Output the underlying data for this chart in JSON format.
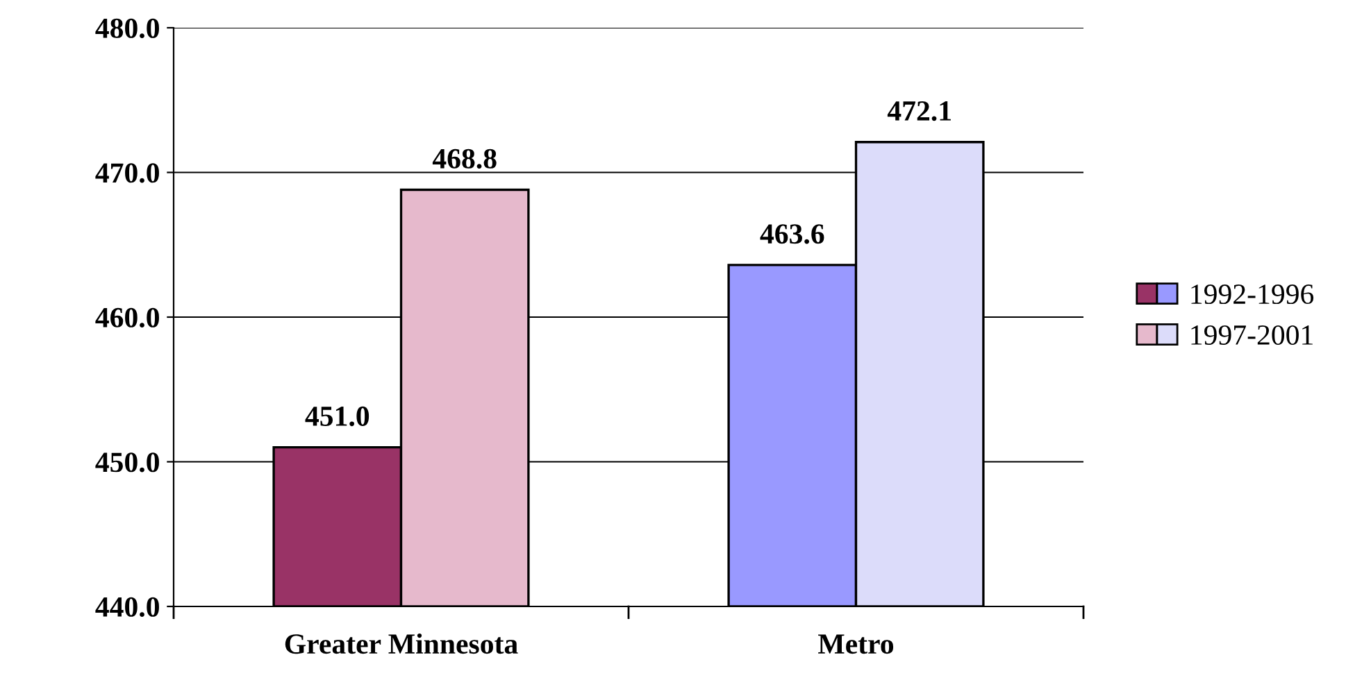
{
  "chart_data": {
    "type": "bar",
    "categories": [
      "Greater Minnesota",
      "Metro"
    ],
    "series": [
      {
        "name": "1992-1996",
        "colors": [
          "#993366",
          "#9999ff"
        ],
        "values": [
          451.0,
          463.6
        ],
        "value_labels": [
          "451.0",
          "463.6"
        ]
      },
      {
        "name": "1997-2001",
        "colors": [
          "#e6b9cc",
          "#dcdcfa"
        ],
        "values": [
          468.8,
          472.1
        ],
        "value_labels": [
          "468.8",
          "472.1"
        ]
      }
    ],
    "ylim": [
      440,
      480
    ],
    "yticks": [
      {
        "value": 440,
        "label": "440.0"
      },
      {
        "value": 450,
        "label": "450.0"
      },
      {
        "value": 460,
        "label": "460.0"
      },
      {
        "value": 470,
        "label": "470.0"
      },
      {
        "value": 480,
        "label": "480.0"
      }
    ],
    "grid": "y",
    "legend": "right"
  }
}
